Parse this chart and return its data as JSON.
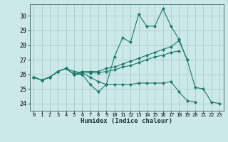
{
  "title": "",
  "xlabel": "Humidex (Indice chaleur)",
  "background_color": "#cce8e8",
  "grid_color": "#aed0d0",
  "line_color": "#1a7a6a",
  "xlim": [
    -0.5,
    23.5
  ],
  "ylim": [
    23.5,
    30.8
  ],
  "yticks": [
    24,
    25,
    26,
    27,
    28,
    29,
    30
  ],
  "xticks": [
    0,
    1,
    2,
    3,
    4,
    5,
    6,
    7,
    8,
    9,
    10,
    11,
    12,
    13,
    14,
    15,
    16,
    17,
    18,
    19,
    20,
    21,
    22,
    23
  ],
  "series": [
    [
      25.8,
      25.6,
      25.8,
      26.2,
      26.4,
      26.0,
      26.0,
      25.3,
      24.8,
      25.3,
      27.2,
      28.5,
      28.2,
      30.1,
      29.3,
      29.3,
      30.5,
      29.3,
      28.4,
      27.0,
      25.1,
      25.0,
      24.1,
      24.0
    ],
    [
      25.8,
      25.6,
      25.8,
      26.2,
      26.4,
      26.0,
      26.2,
      26.2,
      26.2,
      26.4,
      26.5,
      26.7,
      26.9,
      27.1,
      27.3,
      27.5,
      27.7,
      27.9,
      28.3,
      27.0,
      null,
      null,
      null,
      null
    ],
    [
      25.8,
      25.6,
      25.8,
      26.2,
      26.4,
      26.0,
      26.1,
      26.1,
      26.1,
      26.2,
      26.3,
      26.5,
      26.6,
      26.8,
      27.0,
      27.2,
      27.3,
      27.5,
      27.6,
      null,
      null,
      null,
      null,
      null
    ],
    [
      25.8,
      25.6,
      25.8,
      26.2,
      26.4,
      26.2,
      26.1,
      25.8,
      25.5,
      25.3,
      25.3,
      25.3,
      25.3,
      25.4,
      25.4,
      25.4,
      25.4,
      25.5,
      24.8,
      24.2,
      24.1,
      null,
      null,
      null
    ]
  ]
}
